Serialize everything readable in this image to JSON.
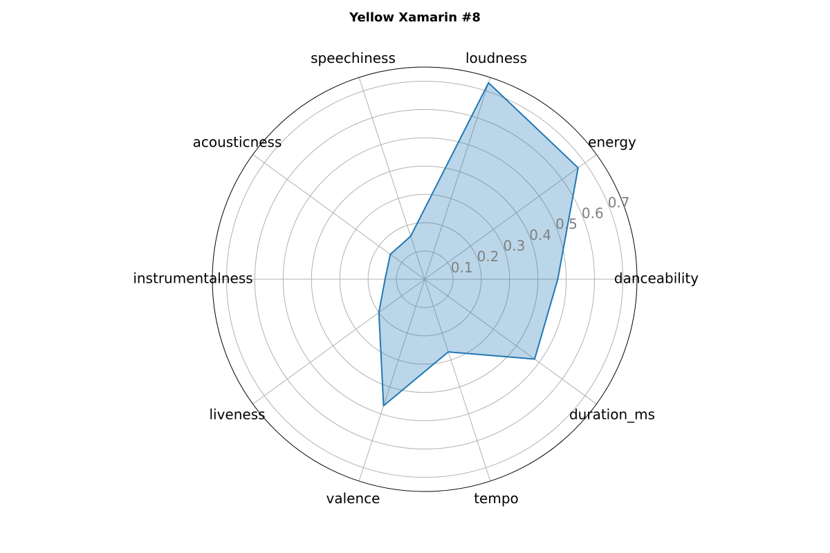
{
  "chart_data": {
    "type": "radar",
    "title": "Yellow Xamarin #8",
    "categories": [
      "danceability",
      "energy",
      "loudness",
      "speechiness",
      "acousticness",
      "instrumentalness",
      "liveness",
      "valence",
      "tempo",
      "duration_ms"
    ],
    "series": [
      {
        "values": [
          0.47,
          0.67,
          0.73,
          0.16,
          0.15,
          0.14,
          0.2,
          0.47,
          0.27,
          0.48
        ],
        "color": "#1f77b4"
      }
    ],
    "radial_ticks": [
      "0.1",
      "0.2",
      "0.3",
      "0.4",
      "0.5",
      "0.6",
      "0.7"
    ],
    "rlim": [
      0,
      0.75
    ],
    "grid": true,
    "fill_alpha": 0.3
  }
}
